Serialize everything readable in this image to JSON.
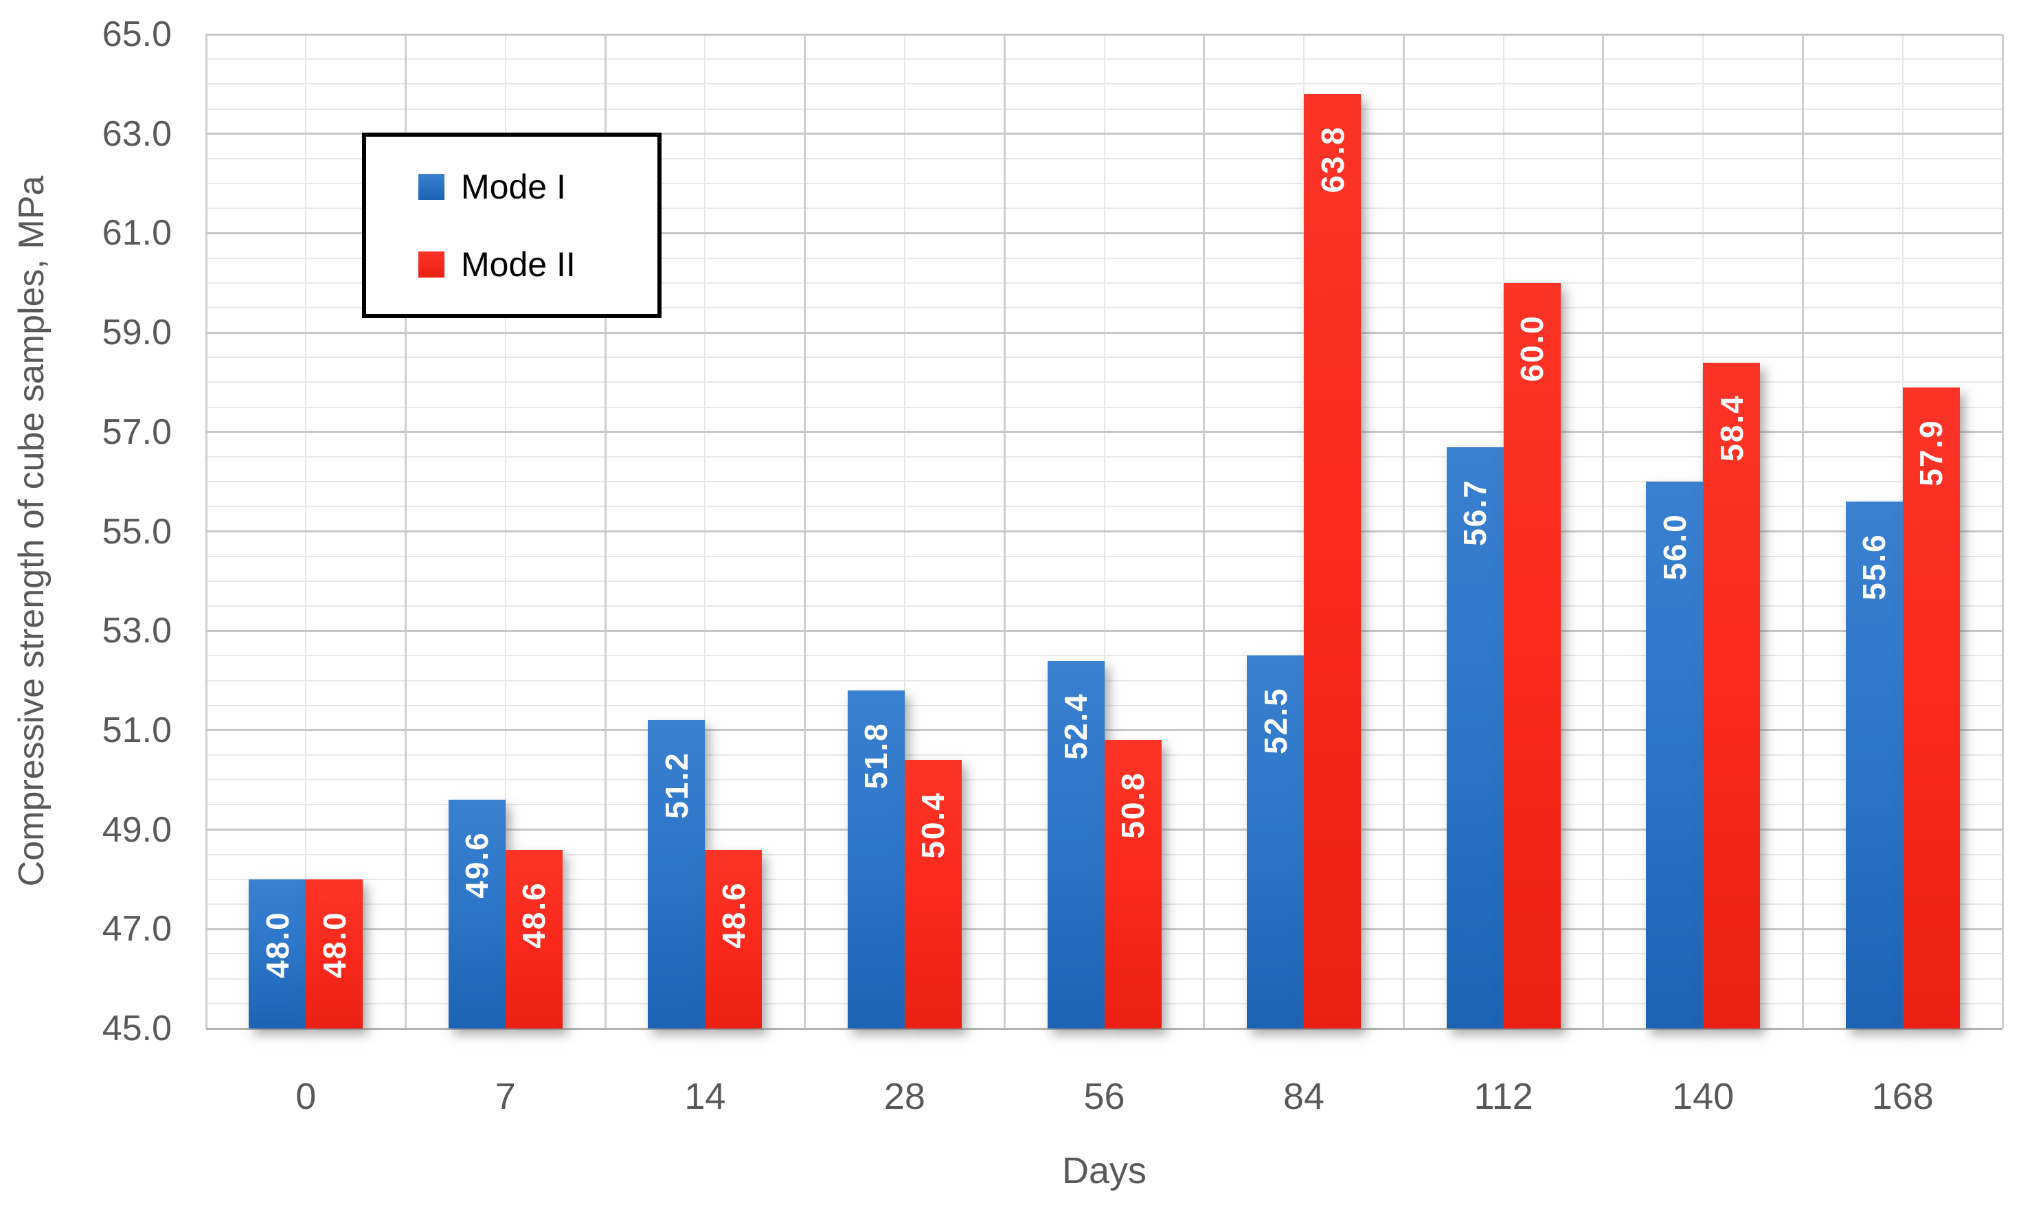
{
  "chart_data": {
    "type": "bar",
    "title": "",
    "xlabel": "Days",
    "ylabel": "Compressive strength of cube samples, MPa",
    "categories": [
      "0",
      "7",
      "14",
      "28",
      "56",
      "84",
      "112",
      "140",
      "168"
    ],
    "series": [
      {
        "name": "Mode I",
        "color": "#2a72c4",
        "color_top": "#3a80d0",
        "color_mid": "#2d76c8",
        "color_bottom": "#1c63b4",
        "values": [
          48.0,
          49.6,
          51.2,
          51.8,
          52.4,
          52.5,
          56.7,
          56.0,
          55.6
        ],
        "labels": [
          "48.0",
          "49.6",
          "51.2",
          "51.8",
          "52.4",
          "52.5",
          "56.7",
          "56.0",
          "55.6"
        ]
      },
      {
        "name": "Mode II",
        "color": "#f92a1d",
        "color_top": "#fb3427",
        "color_mid": "#fa2a1d",
        "color_bottom": "#eb2013",
        "values": [
          48.0,
          48.6,
          48.6,
          50.4,
          50.8,
          63.8,
          60.0,
          58.4,
          57.9
        ],
        "labels": [
          "48.0",
          "48.6",
          "48.6",
          "50.4",
          "50.8",
          "63.8",
          "60.0",
          "58.4",
          "57.9"
        ]
      }
    ],
    "ylim": [
      45.0,
      65.0
    ],
    "y_major_unit": 2.0,
    "y_minor_unit": 0.5,
    "y_tick_labels": [
      "45.0",
      "47.0",
      "49.0",
      "51.0",
      "53.0",
      "55.0",
      "57.0",
      "59.0",
      "61.0",
      "63.0",
      "65.0"
    ],
    "grid": true,
    "legend_position": "top-left",
    "data_label_color": "#ffffff",
    "axis_text_color": "#595959"
  }
}
